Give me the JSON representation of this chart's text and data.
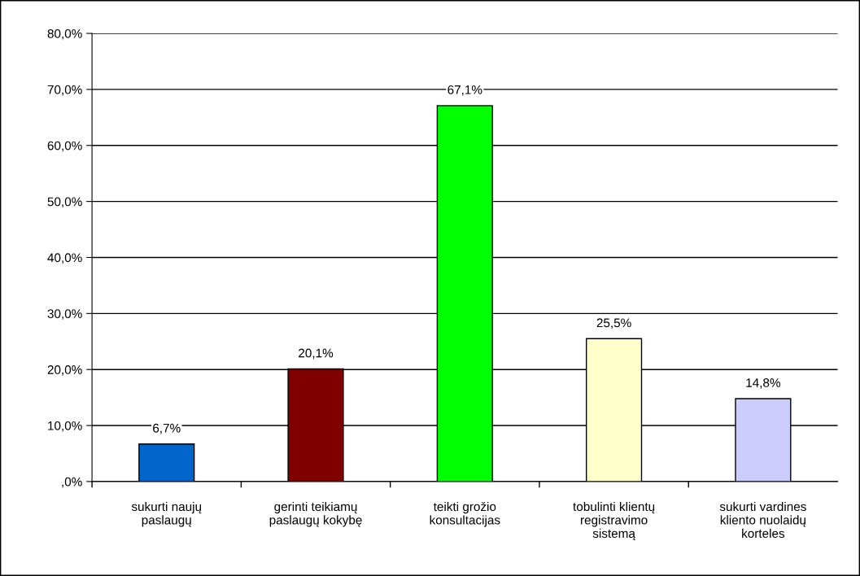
{
  "chart_data": {
    "type": "bar",
    "categories": [
      "sukurti naujų\npaslaugų",
      "gerinti teikiamų\npaslaugų kokybę",
      "teikti grožio\nkonsultacijas",
      "tobulinti klientų\nregistravimo\nsistemą",
      "sukurti vardines\nkliento nuolaidų\nkorteles"
    ],
    "values": [
      6.7,
      20.1,
      67.1,
      25.5,
      14.8
    ],
    "value_labels": [
      "6,7%",
      "20,1%",
      "67,1%",
      "25,5%",
      "14,8%"
    ],
    "colors": [
      "#0066cc",
      "#800000",
      "#00ff00",
      "#ffffcc",
      "#ccccff"
    ],
    "ylim": [
      0,
      80
    ],
    "yticks": [
      {
        "value": 0,
        "label": ",0%"
      },
      {
        "value": 10,
        "label": "10,0%"
      },
      {
        "value": 20,
        "label": "20,0%"
      },
      {
        "value": 30,
        "label": "30,0%"
      },
      {
        "value": 40,
        "label": "40,0%"
      },
      {
        "value": 50,
        "label": "50,0%"
      },
      {
        "value": 60,
        "label": "60,0%"
      },
      {
        "value": 70,
        "label": "70,0%"
      },
      {
        "value": 80,
        "label": "80,0%"
      }
    ],
    "grid": "y",
    "legend": false
  }
}
